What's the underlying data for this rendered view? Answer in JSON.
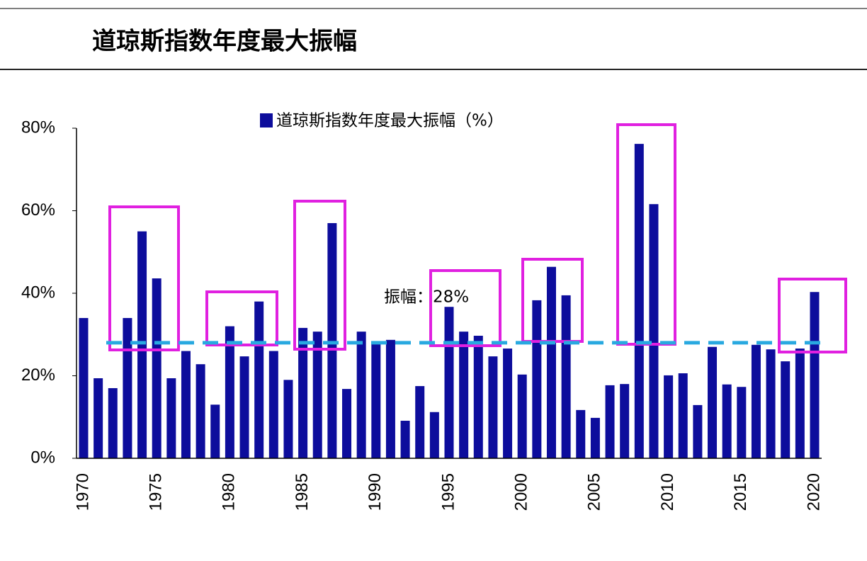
{
  "chart_data": {
    "type": "bar",
    "title": "道琼斯指数年度最大振幅",
    "categories": [
      "1970",
      null,
      null,
      null,
      null,
      "1975",
      null,
      null,
      null,
      null,
      "1980",
      null,
      null,
      null,
      null,
      "1985",
      null,
      null,
      null,
      null,
      "1990",
      null,
      null,
      null,
      null,
      "1995",
      null,
      null,
      null,
      null,
      "2000",
      null,
      null,
      null,
      null,
      "2005",
      null,
      null,
      null,
      null,
      "2010",
      null,
      null,
      null,
      null,
      "2015",
      null,
      null,
      null,
      null,
      "2020"
    ],
    "series": [
      {
        "name": "道琼斯指数年度最大振幅（%）",
        "color": "#0d0d9c",
        "values": [
          34,
          19.4,
          17,
          34,
          55,
          43.6,
          19.4,
          26,
          22.8,
          13,
          32,
          24.7,
          38,
          26,
          19,
          31.6,
          30.7,
          57,
          16.8,
          30.7,
          27.8,
          28.7,
          9.1,
          17.5,
          11.2,
          36.7,
          30.7,
          29.7,
          24.7,
          26.6,
          20.3,
          38.3,
          46.4,
          39.5,
          11.7,
          9.8,
          17.7,
          18,
          76.2,
          61.6,
          20.1,
          20.6,
          12.9,
          27,
          17.9,
          17.3,
          27.5,
          26.4,
          23.5,
          26.6,
          40.3
        ]
      }
    ],
    "average": 28,
    "average_color": "#29a9e0",
    "annotation": "振幅：28%",
    "ylim": [
      0,
      80
    ],
    "yticks": [
      {
        "value": 0,
        "label": "0%"
      },
      {
        "value": 20,
        "label": "20%"
      },
      {
        "value": 40,
        "label": "40%"
      },
      {
        "value": 60,
        "label": "60%"
      },
      {
        "value": 80,
        "label": "80%"
      }
    ]
  }
}
